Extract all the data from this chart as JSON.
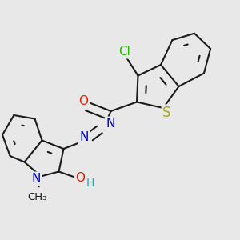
{
  "bg_color": "#e8e8e8",
  "bond_color": "#1a1a1a",
  "lw": 1.5,
  "dbo": 0.018,
  "fs": 11,
  "figsize": [
    3.0,
    3.0
  ],
  "dpi": 100,
  "colors": {
    "Cl": "#22bb00",
    "O": "#dd2200",
    "N": "#0000cc",
    "S": "#aaaa00",
    "H": "#22aaaa",
    "C": "#1a1a1a"
  }
}
